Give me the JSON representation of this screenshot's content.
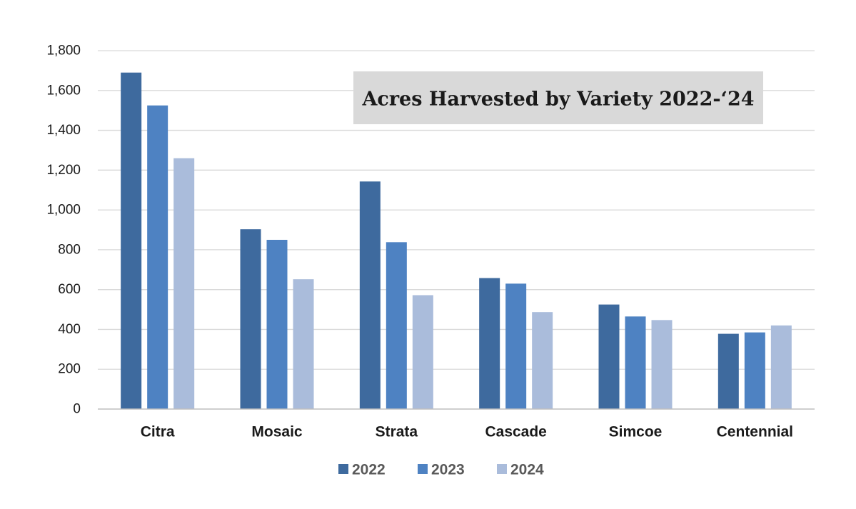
{
  "chart_data": {
    "type": "bar",
    "title": "Acres Harvested by Variety 2022-‘24",
    "categories": [
      "Citra",
      "Mosaic",
      "Strata",
      "Cascade",
      "Simcoe",
      "Centennial"
    ],
    "series": [
      {
        "name": "2022",
        "color": "#3e6a9e",
        "values": [
          1690,
          903,
          1143,
          658,
          525,
          378
        ]
      },
      {
        "name": "2023",
        "color": "#4e82c2",
        "values": [
          1525,
          850,
          838,
          630,
          465,
          385
        ]
      },
      {
        "name": "2024",
        "color": "#aabcdb",
        "values": [
          1260,
          652,
          572,
          487,
          447,
          420
        ]
      }
    ],
    "ylim": [
      0,
      1800
    ],
    "yticks": [
      "0",
      "200",
      "400",
      "600",
      "800",
      "1,000",
      "1,200",
      "1,400",
      "1,600",
      "1,800"
    ],
    "ytick_values": [
      0,
      200,
      400,
      600,
      800,
      1000,
      1200,
      1400,
      1600,
      1800
    ],
    "xlabel": "",
    "ylabel": "",
    "grid": true,
    "legend_position": "bottom",
    "title_box_color": "#d9d9d9"
  }
}
